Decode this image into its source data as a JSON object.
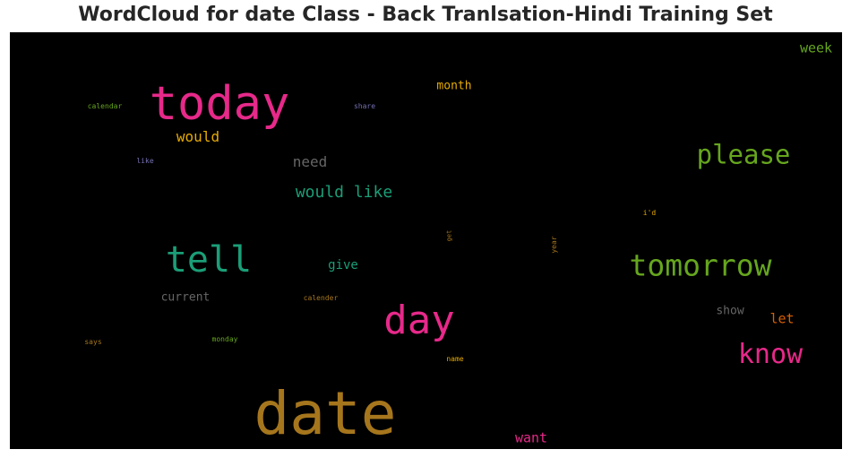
{
  "title": "WordCloud for date Class - Back Tranlsation-Hindi Training Set",
  "chart_data": {
    "type": "wordcloud",
    "title": "WordCloud for date Class - Back Tranlsation-Hindi Training Set",
    "background": "#000000",
    "words": [
      {
        "text": "date",
        "weight": 1.0,
        "color": "#a6761d"
      },
      {
        "text": "today",
        "weight": 0.82,
        "color": "#e7298a"
      },
      {
        "text": "day",
        "weight": 0.72,
        "color": "#e7298a"
      },
      {
        "text": "tell",
        "weight": 0.68,
        "color": "#1b9e77"
      },
      {
        "text": "tomorrow",
        "weight": 0.54,
        "color": "#66a61e"
      },
      {
        "text": "know",
        "weight": 0.5,
        "color": "#e7298a"
      },
      {
        "text": "please",
        "weight": 0.46,
        "color": "#66a61e"
      },
      {
        "text": "would like",
        "weight": 0.3,
        "color": "#1b9e77"
      },
      {
        "text": "would",
        "weight": 0.26,
        "color": "#e6ab02"
      },
      {
        "text": "need",
        "weight": 0.25,
        "color": "#666666"
      },
      {
        "text": "week",
        "weight": 0.24,
        "color": "#66a61e"
      },
      {
        "text": "want",
        "weight": 0.23,
        "color": "#e7298a"
      },
      {
        "text": "give",
        "weight": 0.22,
        "color": "#1b9e77"
      },
      {
        "text": "let",
        "weight": 0.22,
        "color": "#d95f02"
      },
      {
        "text": "month",
        "weight": 0.21,
        "color": "#e6ab02"
      },
      {
        "text": "current",
        "weight": 0.21,
        "color": "#666666"
      },
      {
        "text": "show",
        "weight": 0.21,
        "color": "#666666"
      },
      {
        "text": "calendar",
        "weight": 0.12,
        "color": "#66a61e"
      },
      {
        "text": "share",
        "weight": 0.12,
        "color": "#7570b3"
      },
      {
        "text": "like",
        "weight": 0.12,
        "color": "#7570b3"
      },
      {
        "text": "i'd",
        "weight": 0.12,
        "color": "#e6ab02"
      },
      {
        "text": "get",
        "weight": 0.12,
        "color": "#a6761d"
      },
      {
        "text": "year",
        "weight": 0.12,
        "color": "#a6761d"
      },
      {
        "text": "calender",
        "weight": 0.12,
        "color": "#a6761d"
      },
      {
        "text": "says",
        "weight": 0.12,
        "color": "#a6761d"
      },
      {
        "text": "monday",
        "weight": 0.12,
        "color": "#66a61e"
      },
      {
        "text": "name",
        "weight": 0.12,
        "color": "#e6ab02"
      }
    ]
  }
}
